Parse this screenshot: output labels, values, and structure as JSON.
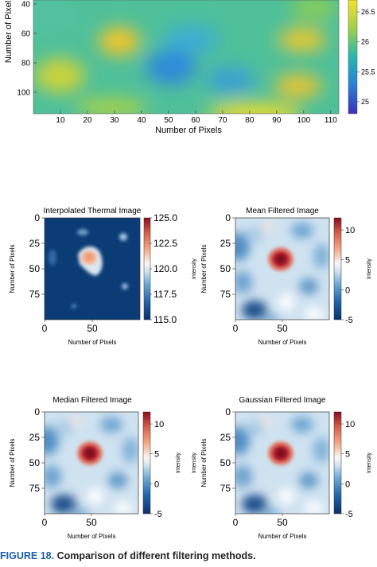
{
  "figure": {
    "label": "FIGURE 18.",
    "caption": "Comparison of different filtering methods."
  },
  "top_plot": {
    "ylabel": "Number of Pixel",
    "xlabel": "Number of Pixels",
    "yticks": [
      "40",
      "60",
      "80",
      "100"
    ],
    "xticks": [
      "10",
      "20",
      "30",
      "40",
      "50",
      "60",
      "70",
      "80",
      "90",
      "100",
      "110"
    ],
    "colorbar_ticks": [
      "26.5",
      "26",
      "25.5",
      "25"
    ],
    "colorbar_range": [
      24.8,
      26.7
    ]
  },
  "panels": [
    {
      "title": "Interpolated Thermal Image",
      "xlabel": "Number of Pixels",
      "ylabel": "Number of Pixels",
      "colorbar_label": "",
      "xticks": [
        "0",
        "50"
      ],
      "yticks": [
        "0",
        "25",
        "50",
        "75"
      ],
      "colorbar_ticks": [
        "125.0",
        "122.5",
        "120.0",
        "117.5",
        "115.0"
      ],
      "colorbar_range": [
        115.0,
        125.0
      ]
    },
    {
      "title": "Mean Filtered Image",
      "xlabel": "Number of Pixels",
      "ylabel": "Number of Pixels",
      "colorbar_label": "Intensity",
      "left_colorbar_label": "Intensity",
      "xticks": [
        "0",
        "50"
      ],
      "yticks": [
        "0",
        "25",
        "50",
        "75"
      ],
      "colorbar_ticks": [
        "10",
        "5",
        "0",
        "-5"
      ],
      "colorbar_range": [
        -5,
        12
      ]
    },
    {
      "title": "Median Filtered Image",
      "xlabel": "Number of Pixels",
      "ylabel": "Number of Pixels",
      "colorbar_label": "Intensity",
      "xticks": [
        "0",
        "50"
      ],
      "yticks": [
        "0",
        "25",
        "50",
        "75"
      ],
      "colorbar_ticks": [
        "10",
        "5",
        "0",
        "-5"
      ],
      "colorbar_range": [
        -5,
        12
      ]
    },
    {
      "title": "Gaussian Filtered Image",
      "xlabel": "Number of Pixels",
      "ylabel": "Number of Pixels",
      "colorbar_label": "Intensity",
      "left_colorbar_label": "Intensity",
      "xticks": [
        "0",
        "50"
      ],
      "yticks": [
        "0",
        "25",
        "50",
        "75"
      ],
      "colorbar_ticks": [
        "10",
        "5",
        "0",
        "-5"
      ],
      "colorbar_range": [
        -5,
        12
      ]
    }
  ],
  "colors": {
    "caption_accent": "#1f5fa8",
    "heat_hot": "#b2182b",
    "heat_cold": "#08306b"
  }
}
